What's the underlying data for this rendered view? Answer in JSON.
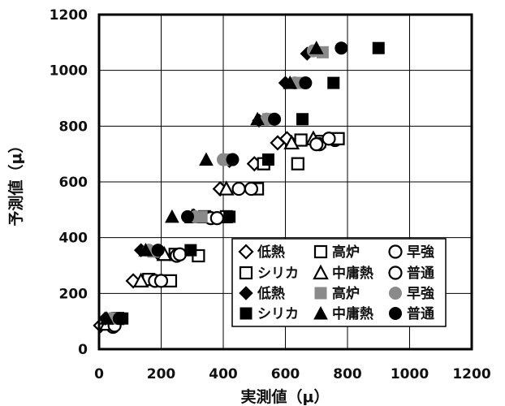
{
  "chart_data": {
    "type": "scatter",
    "title": "",
    "xlabel": "実測値（μ）",
    "ylabel": "予測値（μ）",
    "xlim": [
      0,
      1200
    ],
    "ylim": [
      0,
      1200
    ],
    "xticks": [
      0,
      200,
      400,
      600,
      800,
      1000,
      1200
    ],
    "yticks": [
      0,
      200,
      400,
      600,
      800,
      1000,
      1200
    ],
    "grid": true,
    "legend_position": "lower-right",
    "series": [
      {
        "name": "低熱",
        "marker": "diamond",
        "filled": false,
        "points": [
          [
            5,
            85
          ],
          [
            110,
            245
          ],
          [
            190,
            345
          ],
          [
            390,
            575
          ],
          [
            500,
            665
          ],
          [
            575,
            740
          ],
          [
            605,
            755
          ]
        ]
      },
      {
        "name": "高炉",
        "marker": "square",
        "filled": false,
        "points": [
          [
            40,
            100
          ],
          [
            160,
            250
          ],
          [
            245,
            340
          ],
          [
            340,
            475
          ],
          [
            530,
            665
          ],
          [
            650,
            750
          ],
          [
            710,
            745
          ]
        ]
      },
      {
        "name": "早強",
        "marker": "circle",
        "filled": false,
        "points": [
          [
            45,
            80
          ],
          [
            180,
            245
          ],
          [
            250,
            335
          ],
          [
            360,
            470
          ],
          [
            450,
            575
          ],
          [
            710,
            735
          ],
          [
            760,
            750
          ]
        ]
      },
      {
        "name": "シリカ",
        "marker": "square",
        "filled": false,
        "points": [
          [
            60,
            110
          ],
          [
            230,
            245
          ],
          [
            320,
            335
          ],
          [
            410,
            475
          ],
          [
            510,
            575
          ],
          [
            640,
            665
          ],
          [
            770,
            755
          ]
        ]
      },
      {
        "name": "中庸熱",
        "marker": "triangle",
        "filled": false,
        "points": [
          [
            25,
            90
          ],
          [
            135,
            245
          ],
          [
            210,
            340
          ],
          [
            300,
            475
          ],
          [
            410,
            575
          ],
          [
            620,
            740
          ],
          [
            690,
            755
          ]
        ]
      },
      {
        "name": "普通",
        "marker": "circle",
        "filled": false,
        "points": [
          [
            50,
            85
          ],
          [
            200,
            245
          ],
          [
            260,
            340
          ],
          [
            380,
            470
          ],
          [
            490,
            575
          ],
          [
            700,
            735
          ],
          [
            740,
            755
          ]
        ]
      },
      {
        "name": "低熱",
        "marker": "diamond",
        "filled": true,
        "points": [
          [
            20,
            110
          ],
          [
            135,
            355
          ],
          [
            305,
            480
          ],
          [
            420,
            675
          ],
          [
            515,
            820
          ],
          [
            600,
            955
          ],
          [
            670,
            1060
          ]
        ]
      },
      {
        "name": "高炉",
        "marker": "square",
        "filled": true,
        "points": [
          [
            50,
            110
          ],
          [
            175,
            350
          ],
          [
            330,
            475
          ],
          [
            410,
            680
          ],
          [
            545,
            825
          ],
          [
            645,
            955
          ],
          [
            720,
            1065
          ]
        ]
      },
      {
        "name": "早強",
        "marker": "circle",
        "filled": true,
        "points": [
          [
            40,
            110
          ],
          [
            160,
            355
          ],
          [
            310,
            475
          ],
          [
            400,
            680
          ],
          [
            540,
            825
          ],
          [
            630,
            955
          ],
          [
            690,
            1070
          ]
        ]
      },
      {
        "name": "シリカ",
        "marker": "square",
        "filled": true,
        "points": [
          [
            75,
            110
          ],
          [
            295,
            355
          ],
          [
            420,
            475
          ],
          [
            545,
            680
          ],
          [
            655,
            825
          ],
          [
            755,
            955
          ],
          [
            900,
            1080
          ]
        ]
      },
      {
        "name": "中庸熱",
        "marker": "triangle",
        "filled": true,
        "points": [
          [
            25,
            110
          ],
          [
            150,
            355
          ],
          [
            235,
            475
          ],
          [
            345,
            680
          ],
          [
            510,
            825
          ],
          [
            615,
            955
          ],
          [
            700,
            1080
          ]
        ]
      },
      {
        "name": "普通",
        "marker": "circle",
        "filled": true,
        "points": [
          [
            65,
            110
          ],
          [
            190,
            355
          ],
          [
            285,
            475
          ],
          [
            430,
            680
          ],
          [
            565,
            825
          ],
          [
            665,
            955
          ],
          [
            780,
            1080
          ]
        ]
      }
    ]
  }
}
